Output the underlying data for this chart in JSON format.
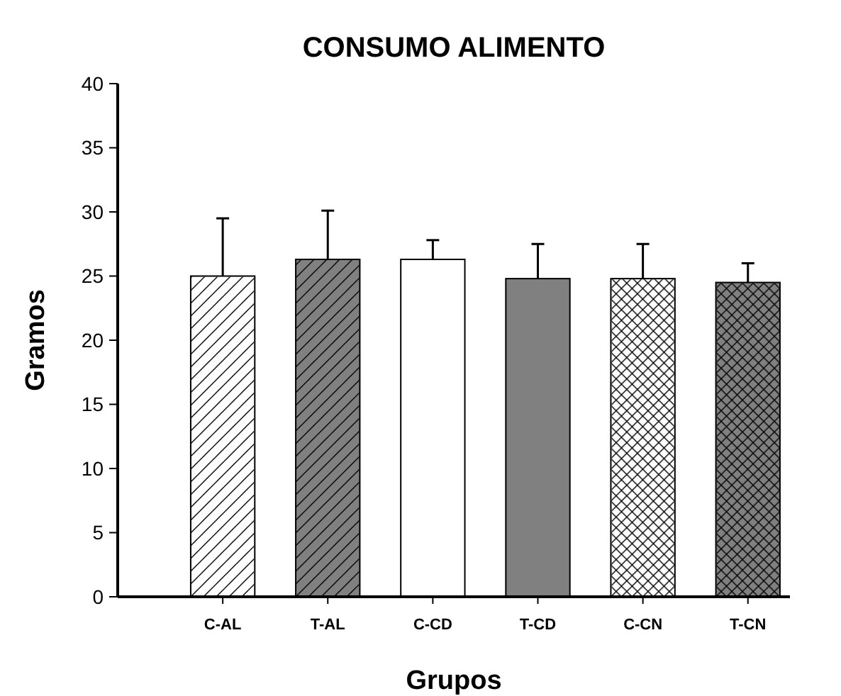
{
  "chart_data": {
    "type": "bar",
    "title": "CONSUMO ALIMENTO",
    "xlabel": "Grupos",
    "ylabel": "Gramos",
    "categories": [
      "C-AL",
      "T-AL",
      "C-CD",
      "T-CD",
      "C-CN",
      "T-CN"
    ],
    "values": [
      25,
      26.3,
      26.3,
      24.8,
      24.8,
      24.5
    ],
    "colors": [
      "#ffffff",
      "#808080",
      "#ffffff",
      "#808080",
      "#ffffff",
      "#808080"
    ],
    "errors": [
      [
        25,
        29.5
      ],
      [
        26.3,
        30.1
      ],
      [
        26.3,
        27.8
      ],
      [
        24.8,
        27.5
      ],
      [
        24.8,
        27.5
      ],
      [
        24.5,
        26
      ]
    ],
    "ylim": [
      0,
      40
    ],
    "yticks": [
      0,
      5,
      10,
      15,
      20,
      25,
      30,
      35,
      40
    ]
  }
}
